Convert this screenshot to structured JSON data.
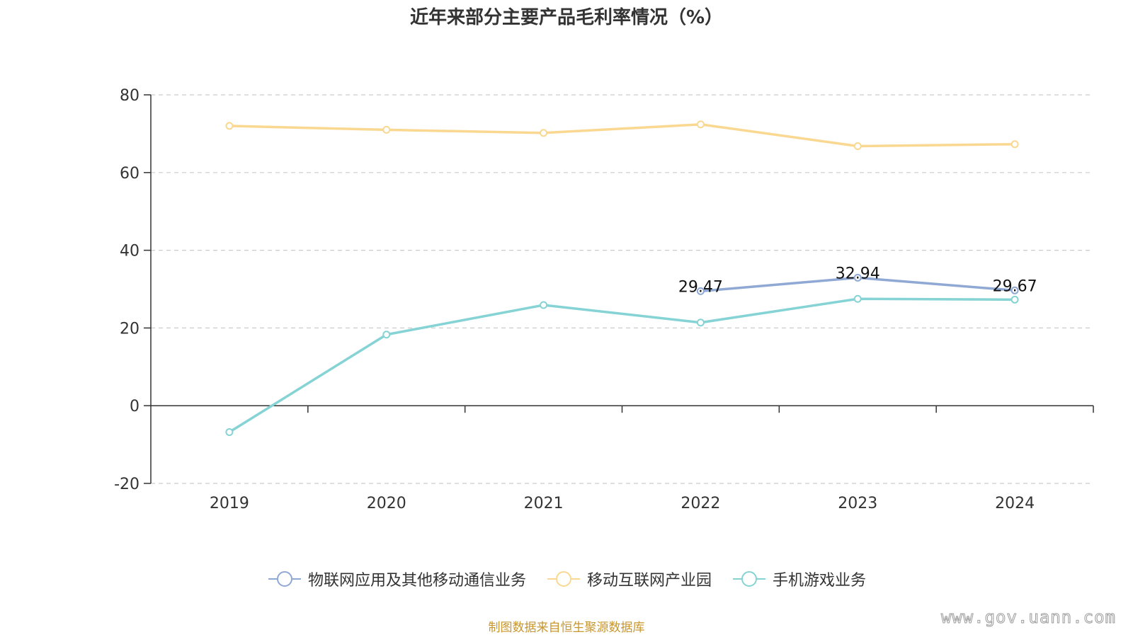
{
  "chart_data": {
    "type": "line",
    "title": "近年来部分主要产品毛利率情况（%）",
    "x": [
      "2019",
      "2020",
      "2021",
      "2022",
      "2023",
      "2024"
    ],
    "ylim": [
      -20,
      80
    ],
    "yticks": [
      -20,
      0,
      20,
      40,
      60,
      80
    ],
    "grid": true,
    "legend_position": "bottom",
    "series": [
      {
        "name": "物联网应用及其他移动通信业务",
        "color": "#8fa8d4",
        "values": [
          null,
          null,
          null,
          29.47,
          32.94,
          29.67
        ],
        "labels": [
          "",
          "",
          "",
          "29.47",
          "32.94",
          "29.67"
        ]
      },
      {
        "name": "移动互联网产业园",
        "color": "#fad891",
        "values": [
          72.0,
          71.0,
          70.2,
          72.4,
          66.8,
          67.3
        ],
        "labels": [
          "",
          "",
          "",
          "",
          "",
          ""
        ]
      },
      {
        "name": "手机游戏业务",
        "color": "#85d3d4",
        "values": [
          -6.8,
          18.3,
          25.9,
          21.4,
          27.5,
          27.3
        ],
        "labels": [
          "",
          "",
          "",
          "",
          "",
          ""
        ]
      }
    ],
    "source": "制图数据来自恒生聚源数据库"
  },
  "watermark": "www.gov.uann.com"
}
